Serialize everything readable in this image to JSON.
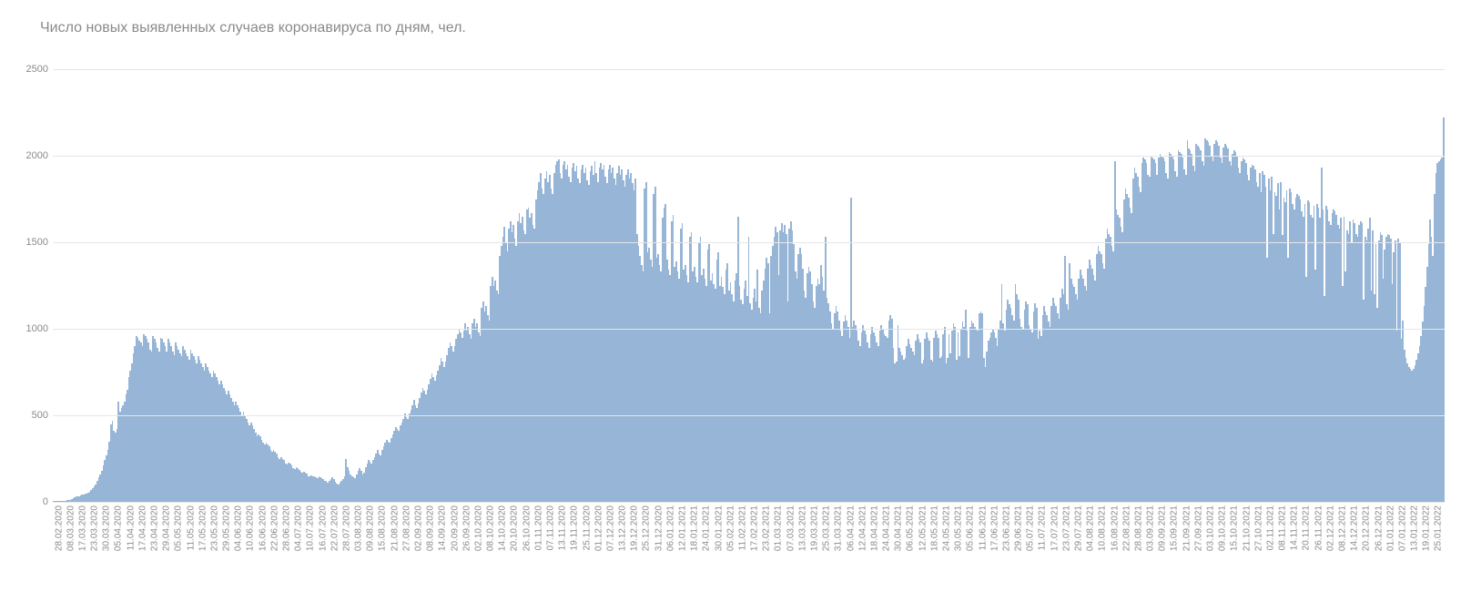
{
  "chart": {
    "type": "bar",
    "title": "Число новых выявленных случаев коронавируса по дням, чел.",
    "title_fontsize": 16,
    "title_color": "#8a8a8a",
    "background_color": "#ffffff",
    "bar_color": "#97b5d6",
    "grid_color": "#e6e6e6",
    "axis_text_color": "#8a8a8a",
    "axis_fontsize": 11,
    "xlabel_fontsize": 10,
    "ylim": [
      0,
      2500
    ],
    "yticks": [
      0,
      500,
      1000,
      1500,
      2000,
      2500
    ],
    "xtick_labels": [
      "28.02.2020",
      "08.03.2020",
      "17.03.2020",
      "23.03.2020",
      "30.03.2020",
      "05.04.2020",
      "11.04.2020",
      "17.04.2020",
      "23.04.2020",
      "29.04.2020",
      "05.05.2020",
      "11.05.2020",
      "17.05.2020",
      "23.05.2020",
      "29.05.2020",
      "04.06.2020",
      "10.06.2020",
      "16.06.2020",
      "22.06.2020",
      "28.06.2020",
      "04.07.2020",
      "10.07.2020",
      "16.07.2020",
      "22.07.2020",
      "28.07.2020",
      "03.08.2020",
      "09.08.2020",
      "15.08.2020",
      "21.08.2020",
      "27.08.2020",
      "02.09.2020",
      "08.09.2020",
      "14.09.2020",
      "20.09.2020",
      "26.09.2020",
      "02.10.2020",
      "08.10.2020",
      "14.10.2020",
      "20.10.2020",
      "26.10.2020",
      "01.11.2020",
      "07.11.2020",
      "13.11.2020",
      "19.11.2020",
      "25.11.2020",
      "01.12.2020",
      "07.12.2020",
      "13.12.2020",
      "19.12.2020",
      "25.12.2020",
      "31.12.2020",
      "06.01.2021",
      "12.01.2021",
      "18.01.2021",
      "24.01.2021",
      "30.01.2021",
      "05.02.2021",
      "11.02.2021",
      "17.02.2021",
      "23.02.2021",
      "01.03.2021",
      "07.03.2021",
      "13.03.2021",
      "19.03.2021",
      "25.03.2021",
      "31.03.2021",
      "06.04.2021",
      "12.04.2021",
      "18.04.2021",
      "24.04.2021",
      "30.04.2021",
      "06.05.2021",
      "12.05.2021",
      "18.05.2021",
      "24.05.2021",
      "30.05.2021",
      "05.06.2021",
      "11.06.2021",
      "17.06.2021",
      "23.06.2021",
      "29.06.2021",
      "05.07.2021",
      "11.07.2021",
      "17.07.2021",
      "23.07.2021",
      "29.07.2021",
      "04.08.2021",
      "10.08.2021",
      "16.08.2021",
      "22.08.2021",
      "28.08.2021",
      "03.09.2021",
      "09.09.2021",
      "15.09.2021",
      "21.09.2021",
      "27.09.2021",
      "03.10.2021",
      "09.10.2021",
      "15.10.2021",
      "21.10.2021",
      "27.10.2021",
      "02.11.2021",
      "08.11.2021",
      "14.11.2021",
      "20.11.2021",
      "26.11.2021",
      "02.12.2021",
      "08.12.2021",
      "14.12.2021",
      "20.12.2021",
      "26.12.2021",
      "01.01.2022",
      "07.01.2022",
      "13.01.2022",
      "19.01.2022",
      "25.01.2022"
    ],
    "values": [
      5,
      5,
      5,
      5,
      5,
      5,
      5,
      5,
      5,
      8,
      10,
      12,
      15,
      20,
      25,
      30,
      30,
      30,
      35,
      40,
      40,
      45,
      50,
      55,
      60,
      70,
      80,
      90,
      100,
      120,
      140,
      160,
      180,
      210,
      240,
      270,
      300,
      350,
      450,
      470,
      410,
      400,
      420,
      580,
      520,
      540,
      560,
      580,
      620,
      650,
      720,
      760,
      800,
      860,
      900,
      960,
      950,
      930,
      920,
      900,
      970,
      960,
      940,
      920,
      880,
      870,
      960,
      940,
      920,
      890,
      870,
      950,
      940,
      920,
      900,
      870,
      940,
      920,
      900,
      870,
      850,
      920,
      900,
      880,
      860,
      840,
      900,
      880,
      860,
      840,
      820,
      880,
      860,
      840,
      820,
      800,
      840,
      820,
      800,
      780,
      760,
      800,
      780,
      760,
      740,
      720,
      760,
      740,
      720,
      700,
      680,
      700,
      680,
      660,
      640,
      620,
      640,
      620,
      600,
      580,
      560,
      580,
      560,
      540,
      520,
      500,
      520,
      500,
      480,
      460,
      440,
      460,
      440,
      420,
      400,
      380,
      390,
      380,
      360,
      340,
      330,
      340,
      330,
      320,
      300,
      290,
      300,
      290,
      280,
      260,
      250,
      260,
      250,
      240,
      220,
      215,
      225,
      220,
      210,
      195,
      190,
      200,
      195,
      185,
      175,
      170,
      175,
      170,
      165,
      150,
      145,
      155,
      150,
      145,
      140,
      135,
      145,
      140,
      135,
      130,
      120,
      120,
      110,
      120,
      130,
      140,
      130,
      115,
      105,
      100,
      110,
      120,
      130,
      150,
      250,
      200,
      180,
      160,
      150,
      140,
      135,
      160,
      180,
      195,
      180,
      160,
      170,
      200,
      220,
      240,
      230,
      220,
      240,
      260,
      280,
      300,
      280,
      270,
      300,
      320,
      340,
      360,
      350,
      340,
      370,
      390,
      410,
      430,
      420,
      410,
      440,
      460,
      480,
      510,
      490,
      480,
      510,
      530,
      560,
      590,
      560,
      540,
      570,
      600,
      630,
      660,
      640,
      620,
      650,
      680,
      710,
      740,
      720,
      700,
      730,
      760,
      790,
      830,
      810,
      780,
      810,
      850,
      890,
      920,
      900,
      870,
      900,
      940,
      970,
      1000,
      980,
      950,
      990,
      1030,
      990,
      1010,
      970,
      940,
      1030,
      1060,
      1010,
      1030,
      980,
      960,
      1120,
      1160,
      1100,
      1130,
      1080,
      1050,
      1250,
      1300,
      1250,
      1280,
      1220,
      1200,
      1420,
      1480,
      1530,
      1590,
      1500,
      1450,
      1580,
      1620,
      1560,
      1600,
      1520,
      1480,
      1620,
      1670,
      1610,
      1650,
      1570,
      1550,
      1690,
      1700,
      1640,
      1670,
      1600,
      1580,
      1750,
      1800,
      1850,
      1900,
      1810,
      1780,
      1870,
      1910,
      1850,
      1890,
      1810,
      1780,
      1900,
      1950,
      1970,
      1980,
      1900,
      1870,
      1950,
      1970,
      1920,
      1950,
      1880,
      1850,
      1930,
      1960,
      1910,
      1940,
      1870,
      1840,
      1920,
      1950,
      1900,
      1930,
      1860,
      1830,
      1910,
      1940,
      1890,
      1970,
      1900,
      1850,
      1930,
      1960,
      1920,
      1950,
      1880,
      1840,
      1920,
      1950,
      1900,
      1930,
      1870,
      1830,
      1900,
      1940,
      1890,
      1920,
      1860,
      1820,
      1890,
      1920,
      1870,
      1900,
      1840,
      1800,
      1870,
      1550,
      1480,
      1420,
      1370,
      1330,
      1810,
      1850,
      1440,
      1470,
      1400,
      1360,
      1780,
      1820,
      1410,
      1430,
      1370,
      1330,
      1640,
      1700,
      1720,
      1400,
      1340,
      1310,
      1620,
      1660,
      1360,
      1390,
      1330,
      1290,
      1580,
      1610,
      1340,
      1370,
      1310,
      1270,
      1530,
      1560,
      1330,
      1360,
      1300,
      1270,
      1500,
      1530,
      1310,
      1350,
      1290,
      1250,
      1460,
      1490,
      1280,
      1320,
      1260,
      1230,
      1400,
      1440,
      1250,
      1300,
      1240,
      1200,
      1340,
      1380,
      1220,
      1270,
      1200,
      1160,
      1280,
      1320,
      1650,
      1250,
      1170,
      1140,
      1230,
      1280,
      1190,
      1530,
      1150,
      1110,
      1180,
      1230,
      1160,
      1340,
      1120,
      1090,
      1220,
      1280,
      1350,
      1410,
      1380,
      1090,
      1420,
      1480,
      1530,
      1590,
      1560,
      1310,
      1570,
      1610,
      1560,
      1600,
      1550,
      1160,
      1580,
      1620,
      1570,
      1490,
      1330,
      1290,
      1430,
      1470,
      1430,
      1350,
      1220,
      1180,
      1320,
      1360,
      1330,
      1260,
      1160,
      1120,
      1250,
      1290,
      1260,
      1370,
      1300,
      1220,
      1530,
      1180,
      1150,
      1100,
      1030,
      1000,
      1090,
      1130,
      1100,
      1050,
      990,
      960,
      1040,
      1080,
      1050,
      1010,
      950,
      1760,
      1010,
      1050,
      1020,
      990,
      930,
      900,
      980,
      1020,
      990,
      970,
      920,
      890,
      970,
      1010,
      980,
      960,
      920,
      900,
      990,
      1020,
      1000,
      970,
      960,
      950,
      1050,
      1080,
      1060,
      890,
      800,
      810,
      1020,
      890,
      870,
      850,
      820,
      830,
      900,
      940,
      910,
      890,
      870,
      850,
      930,
      970,
      940,
      920,
      800,
      820,
      940,
      980,
      950,
      930,
      820,
      810,
      950,
      990,
      970,
      950,
      830,
      840,
      970,
      1010,
      800,
      830,
      970,
      860,
      990,
      1030,
      1010,
      820,
      980,
      840,
      1000,
      1040,
      1010,
      1110,
      990,
      830,
      1010,
      1050,
      1030,
      1010,
      1000,
      990,
      1090,
      1100,
      1090,
      830,
      780,
      870,
      930,
      950,
      980,
      1000,
      980,
      950,
      900,
      1000,
      1050,
      1260,
      1030,
      990,
      1110,
      1170,
      1140,
      1120,
      1080,
      1050,
      1260,
      1200,
      1170,
      1060,
      1010,
      1000,
      1110,
      1160,
      1140,
      1020,
      1000,
      980,
      1100,
      1150,
      1120,
      940,
      990,
      960,
      1080,
      1130,
      1100,
      1080,
      1040,
      1010,
      1130,
      1180,
      1150,
      1130,
      1090,
      1060,
      1180,
      1230,
      1200,
      1420,
      1140,
      1110,
      1380,
      1290,
      1260,
      1240,
      1200,
      1170,
      1290,
      1340,
      1310,
      1290,
      1250,
      1220,
      1350,
      1400,
      1370,
      1350,
      1310,
      1280,
      1430,
      1480,
      1450,
      1430,
      1380,
      1350,
      1520,
      1580,
      1550,
      1530,
      1480,
      1450,
      1970,
      1690,
      1660,
      1640,
      1590,
      1560,
      1750,
      1810,
      1780,
      1760,
      1700,
      1670,
      1870,
      1930,
      1900,
      1880,
      1820,
      1790,
      1960,
      1990,
      1980,
      1960,
      1890,
      1880,
      2000,
      1990,
      1980,
      1960,
      1890,
      1990,
      2010,
      2000,
      1990,
      1970,
      1900,
      1870,
      2020,
      2010,
      2000,
      1980,
      1910,
      1880,
      2030,
      2020,
      2010,
      1990,
      1920,
      1890,
      2090,
      2040,
      2030,
      2010,
      1940,
      1910,
      2070,
      2060,
      2050,
      2030,
      1970,
      1940,
      2100,
      2090,
      2080,
      2060,
      2000,
      1970,
      2070,
      2090,
      2080,
      2060,
      1990,
      1960,
      2050,
      2070,
      2060,
      2040,
      1970,
      1940,
      2010,
      2030,
      2020,
      2000,
      1930,
      1900,
      1970,
      1990,
      1980,
      1960,
      1890,
      1860,
      1930,
      1950,
      1940,
      1920,
      1850,
      1820,
      1900,
      1790,
      1910,
      1890,
      1820,
      1410,
      1870,
      1800,
      1880,
      1550,
      1790,
      1770,
      1840,
      1690,
      1850,
      1540,
      1760,
      1730,
      1800,
      1410,
      1810,
      1790,
      1720,
      1690,
      1760,
      1780,
      1770,
      1750,
      1680,
      1650,
      1720,
      1300,
      1740,
      1730,
      1660,
      1640,
      1710,
      1340,
      1720,
      1700,
      1640,
      1930,
      1690,
      1190,
      1710,
      1690,
      1620,
      1600,
      1670,
      1690,
      1680,
      1660,
      1600,
      1580,
      1640,
      1250,
      1650,
      1330,
      1570,
      1550,
      1620,
      1500,
      1630,
      1610,
      1550,
      1530,
      1600,
      1620,
      1610,
      1170,
      1530,
      1510,
      1580,
      1640,
      1220,
      1570,
      1200,
      1490,
      1120,
      1510,
      1560,
      1540,
      1290,
      1460,
      1530,
      1550,
      1540,
      1520,
      1260,
      1440,
      1510,
      990,
      1520,
      1500,
      940,
      1050,
      880,
      830,
      800,
      780,
      770,
      760,
      770,
      790,
      820,
      860,
      900,
      960,
      1040,
      1130,
      1240,
      1360,
      1490,
      1630,
      1530,
      1420,
      1780,
      1900,
      1960,
      1970,
      1980,
      1990,
      2220
    ]
  }
}
